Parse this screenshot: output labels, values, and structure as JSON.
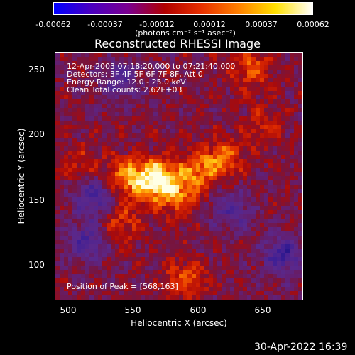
{
  "colorbar": {
    "ticks": [
      "-0.00062",
      "-0.00037",
      "-0.00012",
      "0.00012",
      "0.00037",
      "0.00062"
    ],
    "unit": "(photons cm⁻² s⁻¹ asec⁻²)",
    "colors": [
      "#0000ff",
      "#4a00c0",
      "#7a0090",
      "#b00000",
      "#e83000",
      "#ff8000",
      "#ffe000",
      "#ffffff"
    ]
  },
  "plot": {
    "title": "Reconstructed RHESSI Image",
    "annotations": {
      "time": "12-Apr-2003 07:18:20.000 to 07:21:40.000",
      "detectors": "Detectors: 3F 4F 5F 6F 7F 8F, Att 0",
      "energy": "Energy Range: 12.0 - 25.0 keV",
      "clean": "Clean    Total counts: 2.62E+03",
      "peak": "Position of Peak = [568,163]"
    },
    "xlabel": "Heliocentric X (arcsec)",
    "ylabel": "Heliocentric Y (arcsec)",
    "xticks": [
      "500",
      "550",
      "600",
      "650"
    ],
    "yticks": [
      "250",
      "200",
      "150",
      "100"
    ]
  },
  "chart_data": {
    "type": "heatmap",
    "title": "Reconstructed RHESSI Image",
    "xlabel": "Heliocentric X (arcsec)",
    "ylabel": "Heliocentric Y (arcsec)",
    "xlim": [
      490,
      680
    ],
    "ylim": [
      70,
      262
    ],
    "clim": [
      -0.00062,
      0.00062
    ],
    "peak": [
      568,
      163
    ],
    "sources": [
      {
        "x": 568,
        "y": 163,
        "value": 0.00062
      },
      {
        "x": 545,
        "y": 165,
        "value": 0.0004
      },
      {
        "x": 600,
        "y": 170,
        "value": 0.00035
      },
      {
        "x": 620,
        "y": 180,
        "value": 0.0003
      },
      {
        "x": 585,
        "y": 150,
        "value": 0.0003
      },
      {
        "x": 540,
        "y": 130,
        "value": 0.00025
      },
      {
        "x": 590,
        "y": 85,
        "value": 0.0003
      },
      {
        "x": 640,
        "y": 250,
        "value": 0.0003
      },
      {
        "x": 650,
        "y": 205,
        "value": 0.0002
      },
      {
        "x": 510,
        "y": 175,
        "value": 0.0002
      },
      {
        "x": 520,
        "y": 150,
        "value": -0.0004
      },
      {
        "x": 515,
        "y": 115,
        "value": -0.00035
      },
      {
        "x": 665,
        "y": 105,
        "value": -0.0004
      },
      {
        "x": 625,
        "y": 140,
        "value": -0.0003
      },
      {
        "x": 540,
        "y": 240,
        "value": -0.0003
      }
    ]
  },
  "footer": {
    "timestamp": "30-Apr-2022 16:39"
  }
}
